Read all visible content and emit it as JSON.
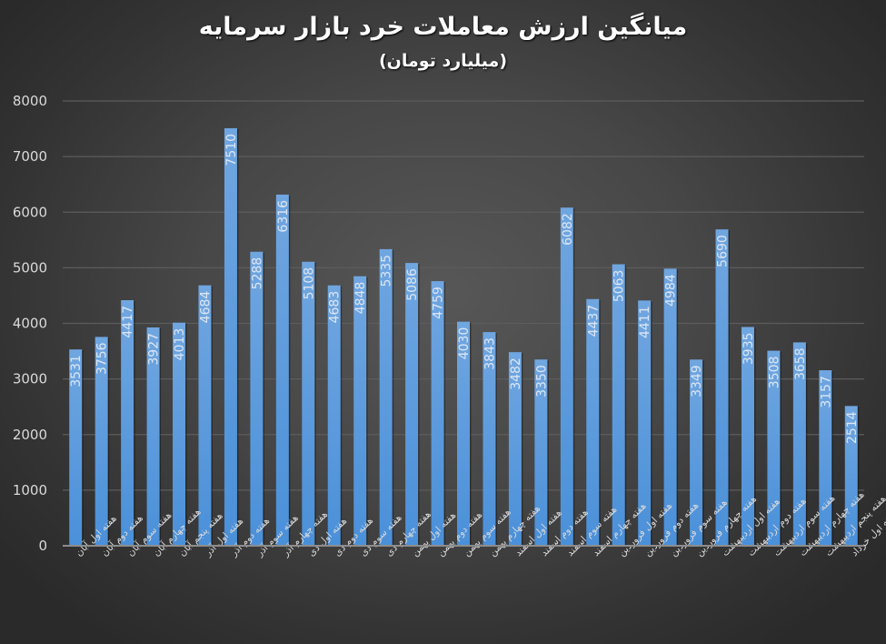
{
  "chart_data": {
    "type": "bar",
    "title": "میانگین ارزش معاملات خرد بازار سرمایه",
    "subtitle": "(میلیارد تومان)",
    "xlabel": "",
    "ylabel": "",
    "ylim": [
      0,
      8000
    ],
    "yticks": [
      0,
      1000,
      2000,
      3000,
      4000,
      5000,
      6000,
      7000,
      8000
    ],
    "grid": true,
    "legend": null,
    "data_labels": "inside-end, rotated vertical",
    "categories": [
      "هفته اول آبان",
      "هفته دوم آبان",
      "هفته سوم آبان",
      "هفته چهارم آبان",
      "هفته پنجم آبان",
      "هفته اول آذر",
      "هفته دوم آذر",
      "هفته سوم آذر",
      "هفته چهارم آذر",
      "هفته اول دی",
      "هفته دوم دی",
      "هفته سوم دی",
      "هفته چهارم دی",
      "هفته اول بهمن",
      "هفته دوم بهمن",
      "هفته سوم بهمن",
      "هفته چهارم بهمن",
      "هفته اول اسفند",
      "هفته دوم اسفند",
      "هفته سوم اسفند",
      "هفته چهارم اسفند",
      "هفته اول فروردین",
      "هفته دوم فروردین",
      "هفته سوم فروردین",
      "هفته چهارم فروردین",
      "هفته اول اردیبهشت",
      "هفته دوم اردیبهشت",
      "هفته سوم اردیبهشت",
      "هفته چهارم اردیبهشت",
      "هفته پنجم اردیبهشت",
      "هفته اول خرداد"
    ],
    "values": [
      3531,
      3756,
      4417,
      3927,
      4013,
      4684,
      7510,
      5288,
      6316,
      5108,
      4683,
      4848,
      5335,
      5086,
      4759,
      4030,
      3843,
      3482,
      3350,
      6082,
      4437,
      5063,
      4411,
      4984,
      3349,
      5690,
      3935,
      3508,
      3658,
      3157,
      2514
    ],
    "colors": {
      "bar_top": "#70a6e0",
      "bar_bottom": "#4a90d9",
      "value_label": "#dce6f2",
      "gridline": "#5c5c5c",
      "axis": "#8c8c8c",
      "tick_text": "#d9d9d9"
    }
  }
}
